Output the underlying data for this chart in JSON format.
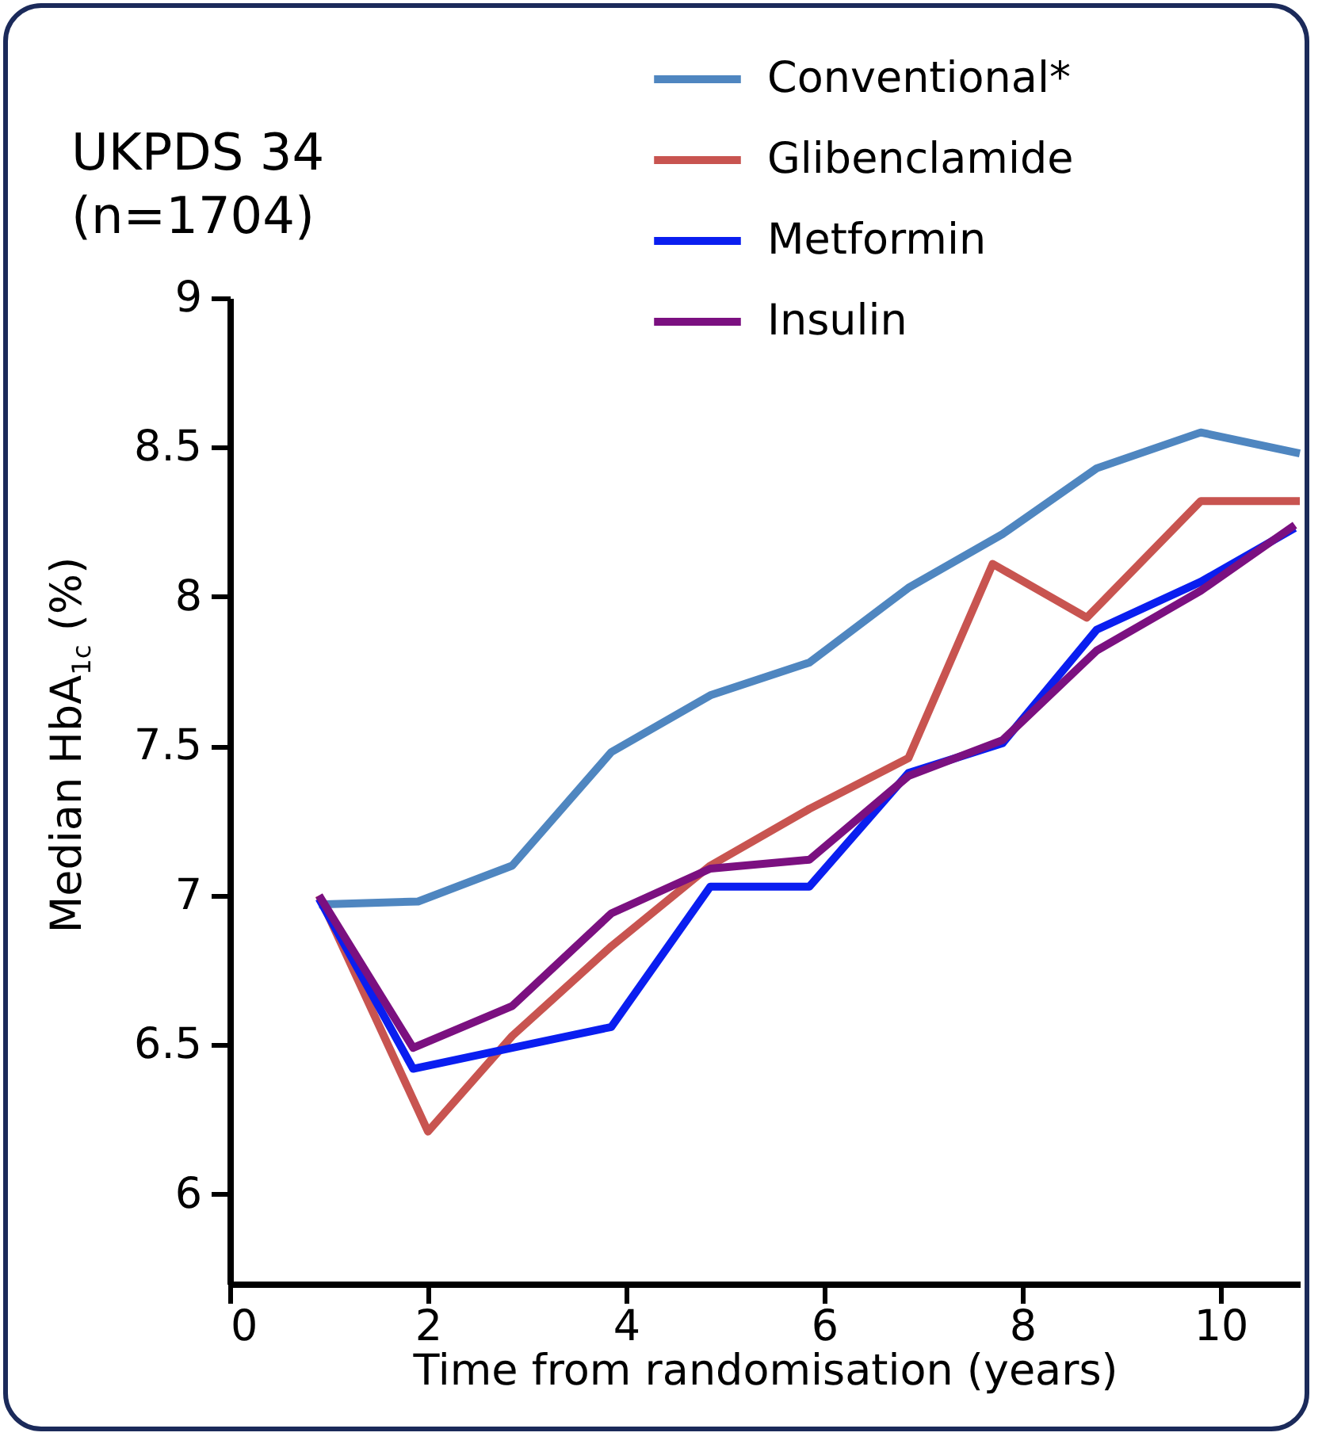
{
  "chart_data": {
    "type": "line",
    "title": "UKPDS 34\n(n=1704)",
    "xlabel": "Time from randomisation (years)",
    "ylabel": "Median HbA$_{1c}$ (%)",
    "xlim": [
      0,
      10.8
    ],
    "xticks": [
      0,
      2,
      4,
      6,
      8,
      10
    ],
    "ylim": [
      5.7,
      9
    ],
    "yticks": [
      6,
      6.5,
      7,
      7.5,
      8,
      8.5,
      9
    ],
    "grid": false,
    "legend": "top right",
    "marker": "none",
    "line_style": "solid",
    "series": [
      {
        "name": "Conventional*",
        "color": "#4f86c0",
        "x": [
          0.9,
          1.9,
          2.85,
          3.85,
          4.85,
          5.85,
          6.85,
          7.8,
          8.75,
          9.8,
          10.8
        ],
        "values": [
          6.97,
          6.98,
          7.1,
          7.48,
          7.67,
          7.78,
          8.03,
          8.21,
          8.43,
          8.55,
          8.48
        ]
      },
      {
        "name": "Glibenclamide",
        "color": "#c85450",
        "x": [
          0.9,
          2.0,
          2.85,
          3.85,
          4.85,
          5.85,
          6.85,
          7.7,
          8.65,
          9.8,
          10.8
        ],
        "values": [
          7.0,
          6.21,
          6.53,
          6.83,
          7.1,
          7.29,
          7.46,
          8.11,
          7.93,
          8.32,
          8.32
        ]
      },
      {
        "name": "Metformin",
        "color": "#0a1ef0",
        "x": [
          0.9,
          1.85,
          2.85,
          3.85,
          4.85,
          5.85,
          6.85,
          7.8,
          8.75,
          9.8,
          10.75
        ],
        "values": [
          6.99,
          6.42,
          6.49,
          6.56,
          7.03,
          7.03,
          7.41,
          7.51,
          7.89,
          8.05,
          8.23
        ]
      },
      {
        "name": "Insulin",
        "color": "#7b1080",
        "x": [
          0.9,
          1.85,
          2.85,
          3.85,
          4.85,
          5.85,
          6.85,
          7.8,
          8.75,
          9.8,
          10.75
        ],
        "values": [
          7.0,
          6.49,
          6.63,
          6.94,
          7.09,
          7.12,
          7.4,
          7.52,
          7.82,
          8.02,
          8.24
        ]
      }
    ]
  }
}
